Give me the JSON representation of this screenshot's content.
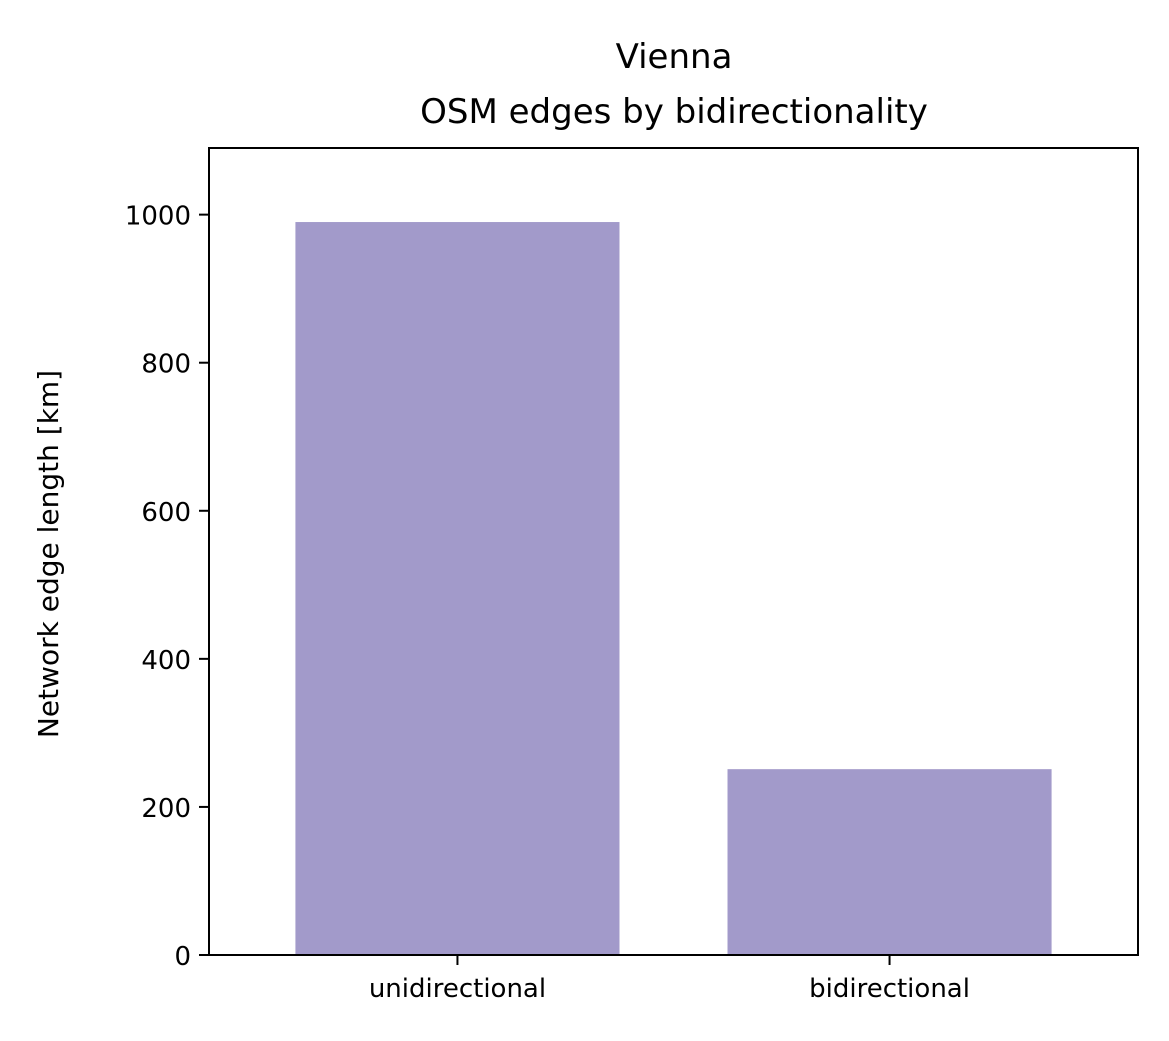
{
  "chart_data": {
    "type": "bar",
    "title_lines": [
      "Vienna",
      "OSM edges by bidirectionality"
    ],
    "xlabel": "",
    "ylabel": "Network edge length [km]",
    "categories": [
      "unidirectional",
      "bidirectional"
    ],
    "values": [
      990,
      251
    ],
    "ylim": [
      0,
      1090
    ],
    "yticks": [
      0,
      200,
      400,
      600,
      800,
      1000
    ],
    "bar_color": "#a29aca",
    "grid": false,
    "legend": "none"
  }
}
